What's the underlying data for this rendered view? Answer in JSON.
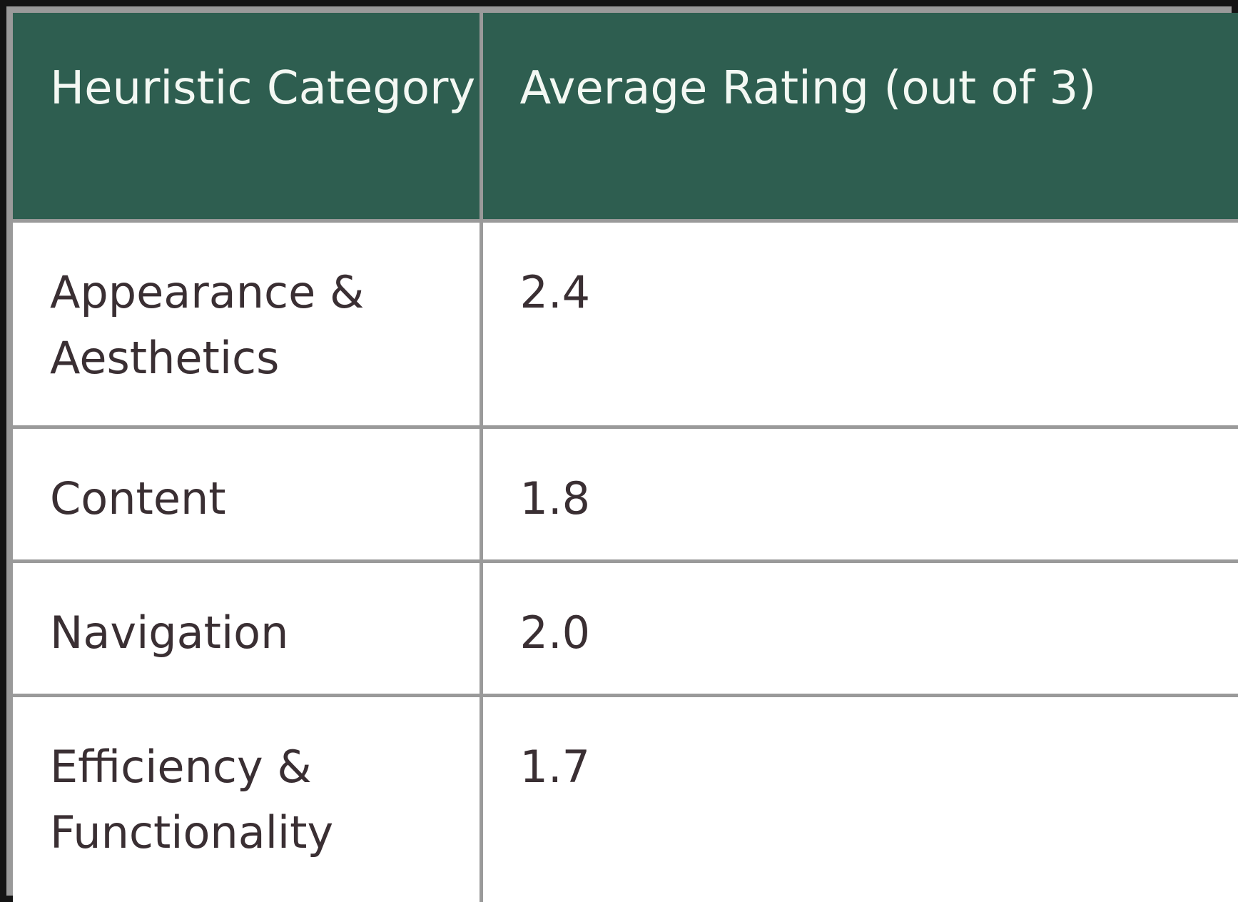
{
  "table": {
    "headers": [
      "Heuristic Category",
      "Average Rating (out of 3)"
    ],
    "rows": [
      {
        "category": "Appearance & Aesthetics",
        "rating": "2.4"
      },
      {
        "category": "Content",
        "rating": "1.8"
      },
      {
        "category": "Navigation",
        "rating": "2.0"
      },
      {
        "category": "Efficiency & Functionality",
        "rating": "1.7"
      }
    ],
    "colors": {
      "header_background": "#2e5e50",
      "header_text": "#f3f8f3",
      "body_text": "#3a2f33",
      "grid_lines": "#9a9a9a",
      "outer_border": "#141414"
    }
  }
}
